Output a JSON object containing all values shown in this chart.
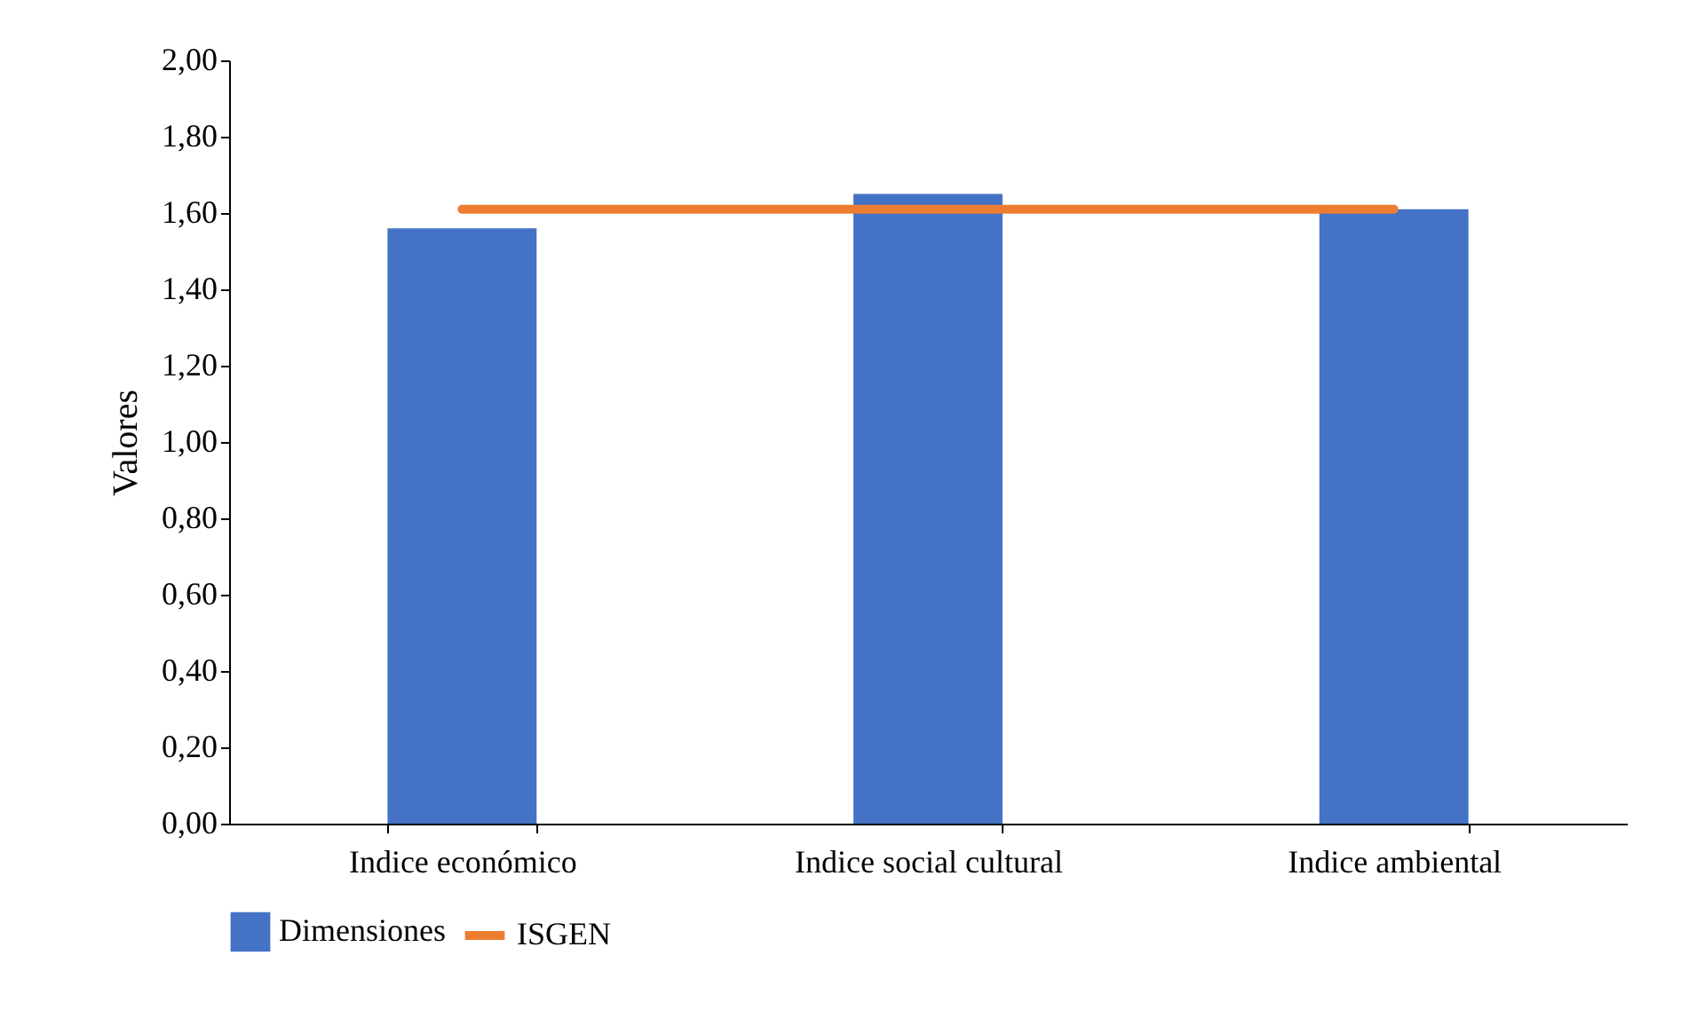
{
  "chart_data": {
    "type": "bar",
    "ylabel": "Valores",
    "categories": [
      "Indice económico",
      "Indice social cultural",
      "Indice ambiental"
    ],
    "series": [
      {
        "name": "Dimensiones",
        "type": "bar",
        "color": "#4472c4",
        "values": [
          1.56,
          1.65,
          1.61
        ]
      },
      {
        "name": "ISGEN",
        "type": "line",
        "color": "#ed7d31",
        "values": [
          1.61,
          1.61,
          1.61
        ]
      }
    ],
    "ylim": [
      0,
      2
    ],
    "yticks": [
      {
        "value": 0,
        "label": "0,00"
      },
      {
        "value": 0.2,
        "label": "0,20"
      },
      {
        "value": 0.4,
        "label": "0,40"
      },
      {
        "value": 0.6,
        "label": "0,60"
      },
      {
        "value": 0.8,
        "label": "0,80"
      },
      {
        "value": 1,
        "label": "1,00"
      },
      {
        "value": 1.2,
        "label": "1,20"
      },
      {
        "value": 1.4,
        "label": "1,40"
      },
      {
        "value": 1.6,
        "label": "1,60"
      },
      {
        "value": 1.8,
        "label": "1,80"
      },
      {
        "value": 2,
        "label": "2,00"
      }
    ],
    "grid": false,
    "legend": "bottom"
  }
}
